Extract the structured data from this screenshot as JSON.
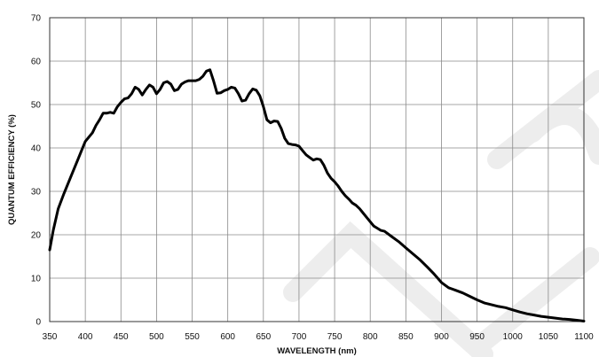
{
  "chart_data": {
    "type": "line",
    "xlabel": "WAVELENGTH (nm)",
    "ylabel": "QUANTUM  EFFICIENCY (%)",
    "xlim": [
      350,
      1100
    ],
    "ylim": [
      0,
      70
    ],
    "x_ticks": [
      350,
      400,
      450,
      500,
      550,
      600,
      650,
      700,
      750,
      800,
      850,
      900,
      950,
      1000,
      1050,
      1100
    ],
    "y_ticks": [
      0,
      10,
      20,
      30,
      40,
      50,
      60,
      70
    ],
    "grid": true,
    "series": [
      {
        "color": "#000000",
        "x": [
          350,
          355,
          362,
          370,
          380,
          390,
          395,
          400,
          405,
          410,
          415,
          420,
          425,
          430,
          435,
          440,
          445,
          450,
          455,
          460,
          465,
          470,
          475,
          480,
          485,
          490,
          495,
          500,
          505,
          510,
          515,
          520,
          525,
          530,
          535,
          540,
          545,
          550,
          555,
          560,
          565,
          570,
          575,
          580,
          585,
          590,
          595,
          600,
          605,
          610,
          615,
          620,
          625,
          630,
          635,
          640,
          645,
          650,
          655,
          660,
          665,
          670,
          675,
          680,
          685,
          690,
          695,
          700,
          705,
          710,
          715,
          720,
          725,
          730,
          735,
          740,
          745,
          750,
          755,
          760,
          765,
          770,
          775,
          780,
          785,
          790,
          795,
          800,
          805,
          810,
          815,
          820,
          830,
          840,
          850,
          860,
          870,
          880,
          890,
          900,
          910,
          920,
          930,
          940,
          950,
          960,
          970,
          980,
          990,
          1000,
          1010,
          1020,
          1030,
          1040,
          1050,
          1060,
          1070,
          1080,
          1090,
          1100
        ],
        "y": [
          16.5,
          21,
          26,
          29.5,
          33.5,
          37.5,
          39.5,
          41.5,
          42.5,
          43.5,
          45.2,
          46.5,
          48,
          48,
          48.2,
          48,
          49.5,
          50.5,
          51.3,
          51.5,
          52.5,
          54,
          53.5,
          52.2,
          53.5,
          54.5,
          54,
          52.5,
          53.5,
          55,
          55.3,
          54.7,
          53.2,
          53.5,
          54.7,
          55.2,
          55.5,
          55.5,
          55.5,
          55.8,
          56.5,
          57.7,
          58,
          55.5,
          52.6,
          52.7,
          53.2,
          53.5,
          54,
          53.8,
          52.5,
          50.8,
          51,
          52.5,
          53.6,
          53.3,
          52,
          49.5,
          46.5,
          45.8,
          46.2,
          46.1,
          44.5,
          42.2,
          41,
          40.8,
          40.7,
          40.4,
          39.4,
          38.4,
          37.8,
          37.2,
          37.5,
          37.3,
          36,
          34.2,
          33,
          32.2,
          31.2,
          30,
          29,
          28.2,
          27.3,
          26.8,
          26,
          25,
          24,
          23,
          22,
          21.5,
          21,
          20.8,
          19.6,
          18.4,
          17,
          15.6,
          14.2,
          12.6,
          10.9,
          9,
          7.8,
          7.2,
          6.6,
          5.8,
          5,
          4.3,
          3.9,
          3.5,
          3.2,
          2.7,
          2.2,
          1.8,
          1.5,
          1.2,
          1,
          0.8,
          0.6,
          0.5,
          0.3,
          0.1
        ]
      }
    ]
  }
}
